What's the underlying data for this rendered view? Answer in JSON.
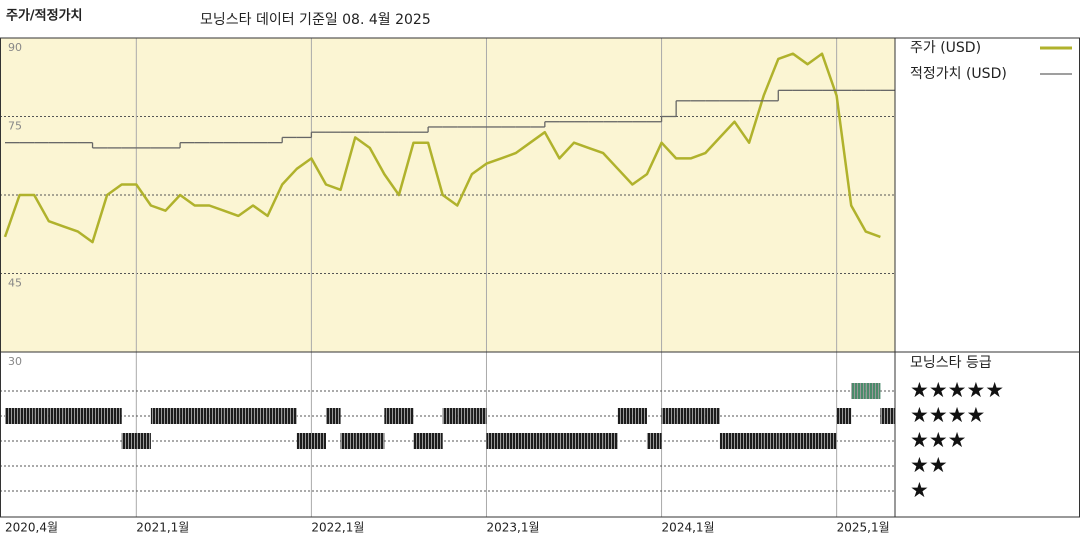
{
  "chart_data": {
    "type": "line",
    "title": "주가/적정가치",
    "subtitle": "모닝스타 데이터 기준일 08. 4월 2025",
    "x": [
      "2020-04",
      "2020-05",
      "2020-06",
      "2020-07",
      "2020-08",
      "2020-09",
      "2020-10",
      "2020-11",
      "2020-12",
      "2021-01",
      "2021-02",
      "2021-03",
      "2021-04",
      "2021-05",
      "2021-06",
      "2021-07",
      "2021-08",
      "2021-09",
      "2021-10",
      "2021-11",
      "2021-12",
      "2022-01",
      "2022-02",
      "2022-03",
      "2022-04",
      "2022-05",
      "2022-06",
      "2022-07",
      "2022-08",
      "2022-09",
      "2022-10",
      "2022-11",
      "2022-12",
      "2023-01",
      "2023-02",
      "2023-03",
      "2023-04",
      "2023-05",
      "2023-06",
      "2023-07",
      "2023-08",
      "2023-09",
      "2023-10",
      "2023-11",
      "2023-12",
      "2024-01",
      "2024-02",
      "2024-03",
      "2024-04",
      "2024-05",
      "2024-06",
      "2024-07",
      "2024-08",
      "2024-09",
      "2024-10",
      "2024-11",
      "2024-12",
      "2025-01",
      "2025-02",
      "2025-03",
      "2025-04"
    ],
    "series": [
      {
        "name": "주가 (USD)",
        "color": "#b0b22c",
        "values": [
          52,
          60,
          60,
          55,
          54,
          53,
          51,
          60,
          62,
          62,
          58,
          57,
          60,
          58,
          58,
          57,
          56,
          58,
          56,
          62,
          65,
          67,
          62,
          61,
          71,
          69,
          64,
          60,
          70,
          70,
          60,
          58,
          64,
          66,
          67,
          68,
          70,
          72,
          67,
          70,
          69,
          68,
          65,
          62,
          64,
          70,
          67,
          67,
          68,
          71,
          74,
          70,
          79,
          86,
          87,
          85,
          87,
          79,
          58,
          53,
          52
        ]
      },
      {
        "name": "적정가치 (USD)",
        "color": "#666666",
        "step": true,
        "values": [
          70,
          70,
          70,
          70,
          70,
          70,
          69,
          69,
          69,
          69,
          69,
          69,
          70,
          70,
          70,
          70,
          70,
          70,
          70,
          71,
          71,
          72,
          72,
          72,
          72,
          72,
          72,
          72,
          72,
          73,
          73,
          73,
          73,
          73,
          73,
          73,
          73,
          74,
          74,
          74,
          74,
          74,
          74,
          74,
          74,
          75,
          78,
          78,
          78,
          78,
          78,
          78,
          78,
          80,
          80,
          80,
          80,
          80,
          80,
          80,
          80
        ]
      }
    ],
    "xlim": [
      "2020-04",
      "2025-05"
    ],
    "xticks": [
      {
        "value": "2020-04",
        "label": "2020,4월"
      },
      {
        "value": "2021-01",
        "label": "2021,1월"
      },
      {
        "value": "2022-01",
        "label": "2022,1월"
      },
      {
        "value": "2023-01",
        "label": "2023,1월"
      },
      {
        "value": "2024-01",
        "label": "2024,1월"
      },
      {
        "value": "2025-01",
        "label": "2025,1월"
      }
    ],
    "ylim": [
      30,
      90
    ],
    "yticks": [
      90,
      75,
      45,
      30
    ],
    "unlabeled_yticks": [
      60
    ],
    "background": "#fbf5d3",
    "ratings": {
      "title": "모닝스타 등급",
      "levels": [
        5,
        4,
        3,
        2,
        1
      ],
      "labels": [
        "★★★★★",
        "★★★★",
        "★★★",
        "★★",
        "★"
      ],
      "color": "#1c1c1c",
      "highlight_level": 5,
      "highlight_color": "#4a8a6a",
      "values": [
        4,
        4,
        4,
        4,
        4,
        4,
        4,
        4,
        3,
        3,
        4,
        4,
        4,
        4,
        4,
        4,
        4,
        4,
        4,
        4,
        3,
        3,
        4,
        3,
        3,
        3,
        4,
        4,
        3,
        3,
        4,
        4,
        4,
        3,
        3,
        3,
        3,
        3,
        3,
        3,
        3,
        3,
        4,
        4,
        3,
        4,
        4,
        4,
        4,
        3,
        3,
        3,
        3,
        3,
        3,
        3,
        3,
        4,
        5,
        5,
        4
      ]
    }
  }
}
